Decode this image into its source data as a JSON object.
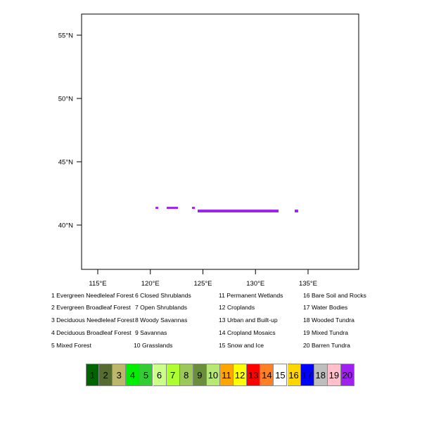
{
  "map": {
    "lon_range": [
      113.4,
      139.8
    ],
    "lat_range": [
      36.5,
      56.7
    ],
    "lon_ticks": [
      {
        "value": 115,
        "label": "115°E"
      },
      {
        "value": 120,
        "label": "120°E"
      },
      {
        "value": 125,
        "label": "125°E"
      },
      {
        "value": 130,
        "label": "130°E"
      },
      {
        "value": 135,
        "label": "135°E"
      }
    ],
    "lat_ticks": [
      {
        "value": 40,
        "label": "40°N"
      },
      {
        "value": 45,
        "label": "45°N"
      },
      {
        "value": 50,
        "label": "50°N"
      },
      {
        "value": 55,
        "label": "55°N"
      }
    ],
    "cells": [
      {
        "lon": [
          120.49,
          120.75
        ],
        "lat": [
          41.28,
          41.44
        ],
        "class": 20
      },
      {
        "lon": [
          121.55,
          122.63
        ],
        "lat": [
          41.28,
          41.44
        ],
        "class": 20
      },
      {
        "lon": [
          123.96,
          124.23
        ],
        "lat": [
          41.28,
          41.44
        ],
        "class": 20
      },
      {
        "lon": [
          124.5,
          132.19
        ],
        "lat": [
          41.0,
          41.22
        ],
        "class": 20
      },
      {
        "lon": [
          133.73,
          134.06
        ],
        "lat": [
          41.0,
          41.22
        ],
        "class": 20
      }
    ]
  },
  "legend": [
    {
      "label": "1  Evergreen Needleleaf Forest"
    },
    {
      "label": "2  Evergreen Broadleaf Forest"
    },
    {
      "label": "3  Deciduous Needleleaf Forest"
    },
    {
      "label": "4  Deciduous Broadleaf Forest"
    },
    {
      "label": "5  Mixed Forest"
    },
    {
      "label": "6  Closed Shrublands"
    },
    {
      "label": "7  Open Shrublands"
    },
    {
      "label": "8  Woody Savannas"
    },
    {
      "label": "9  Savannas"
    },
    {
      "label": "10  Grasslands"
    },
    {
      "label": "11  Permanent Wetlands"
    },
    {
      "label": "12  Croplands"
    },
    {
      "label": "13  Urban and Built-up"
    },
    {
      "label": "14  Cropland Mosaics"
    },
    {
      "label": "15  Snow and Ice"
    },
    {
      "label": "16  Bare Soil and Rocks"
    },
    {
      "label": "17  Water Bodies"
    },
    {
      "label": "18  Wooded Tundra"
    },
    {
      "label": "19  Mixed Tundra"
    },
    {
      "label": "20  Barren Tundra"
    }
  ],
  "colorbar": [
    {
      "label": "1",
      "color": "#006400"
    },
    {
      "label": "2",
      "color": "#556b2f"
    },
    {
      "label": "3",
      "color": "#bdb76b"
    },
    {
      "label": "4",
      "color": "#00ee00"
    },
    {
      "label": "5",
      "color": "#32cd32"
    },
    {
      "label": "6",
      "color": "#ccff88"
    },
    {
      "label": "7",
      "color": "#adff2f"
    },
    {
      "label": "8",
      "color": "#9cc85a"
    },
    {
      "label": "9",
      "color": "#6b8e3a"
    },
    {
      "label": "10",
      "color": "#b8e874"
    },
    {
      "label": "11",
      "color": "#ffa500"
    },
    {
      "label": "12",
      "color": "#ffff00"
    },
    {
      "label": "13",
      "color": "#ff0000"
    },
    {
      "label": "14",
      "color": "#ff7f24"
    },
    {
      "label": "15",
      "color": "#ffffff"
    },
    {
      "label": "16",
      "color": "#ffd700"
    },
    {
      "label": "17",
      "color": "#0000ff"
    },
    {
      "label": "18",
      "color": "#bebebe"
    },
    {
      "label": "19",
      "color": "#ffc0cb"
    },
    {
      "label": "20",
      "color": "#a020f0"
    }
  ]
}
